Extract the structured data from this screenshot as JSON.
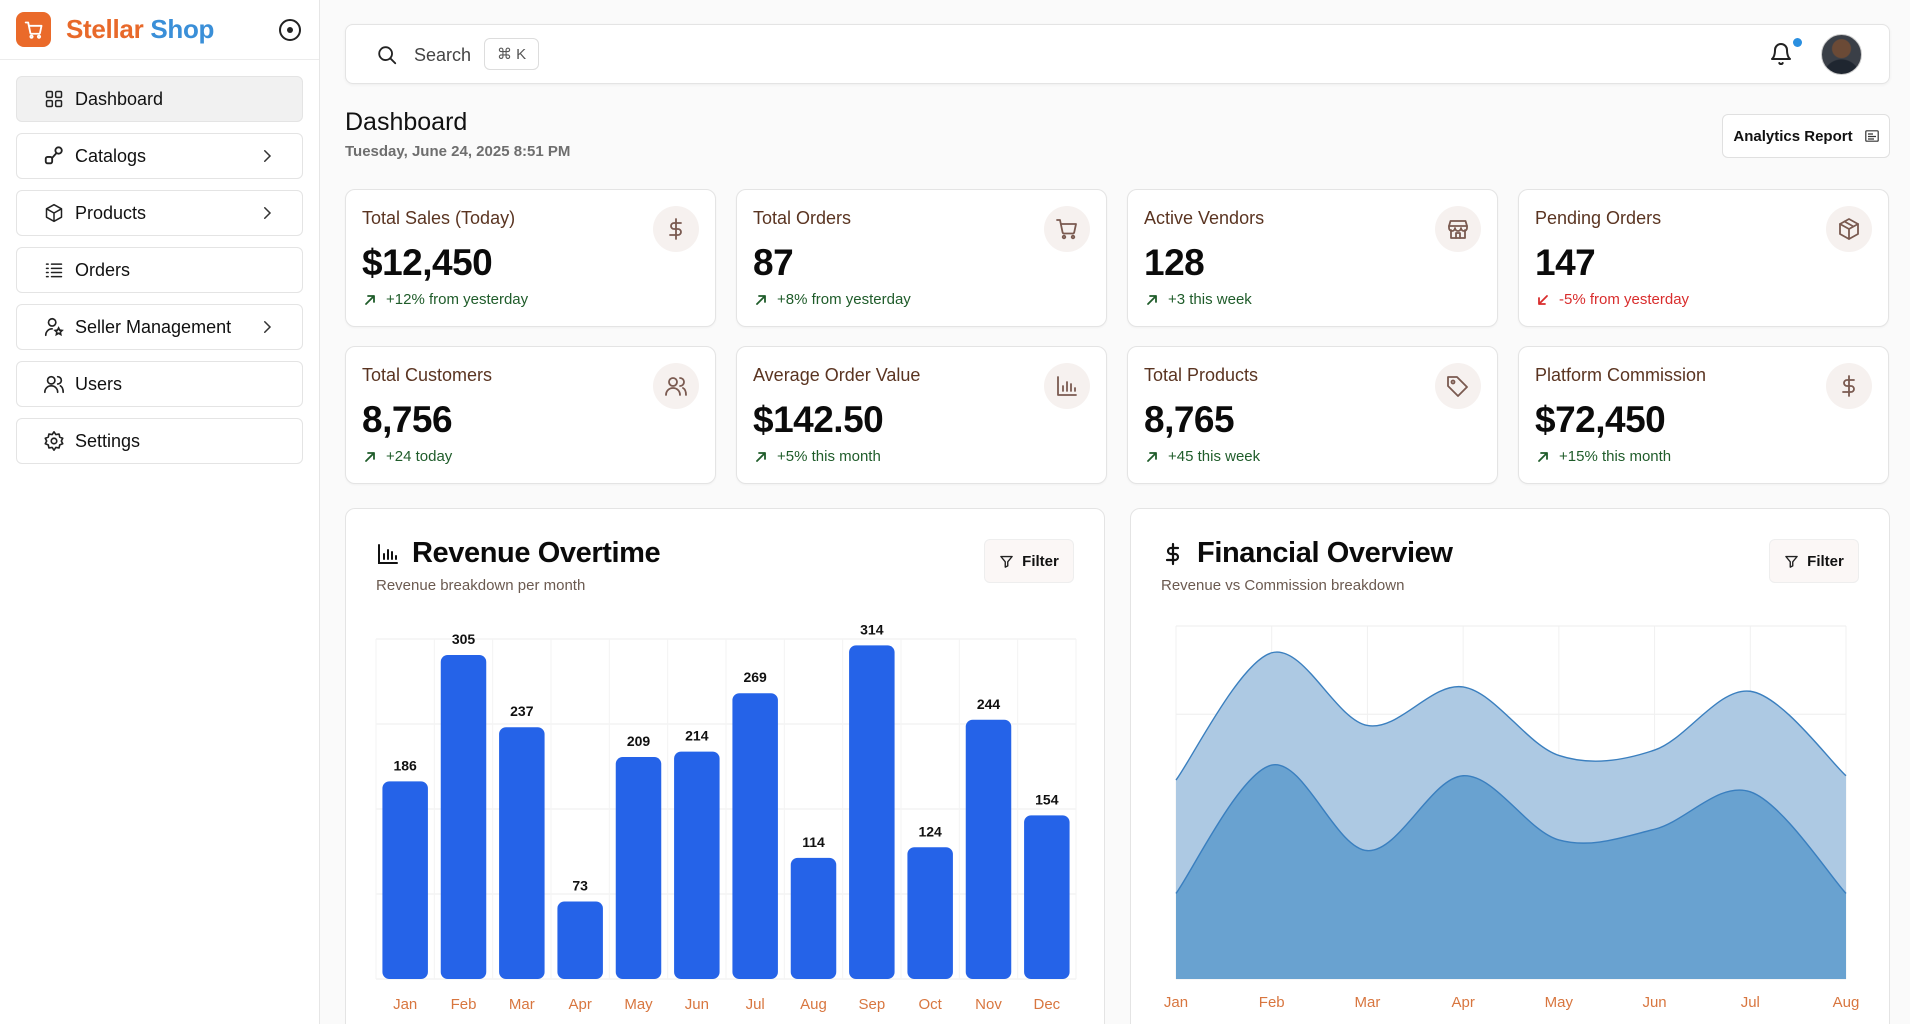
{
  "brand": {
    "word1": "Stellar",
    "word2": "Shop"
  },
  "sidebar": {
    "items": [
      {
        "label": "Dashboard",
        "icon": "grid-icon",
        "active": true,
        "has_submenu": false
      },
      {
        "label": "Catalogs",
        "icon": "catalog-icon",
        "active": false,
        "has_submenu": true
      },
      {
        "label": "Products",
        "icon": "box-icon",
        "active": false,
        "has_submenu": true
      },
      {
        "label": "Orders",
        "icon": "list-icon",
        "active": false,
        "has_submenu": false
      },
      {
        "label": "Seller Management",
        "icon": "seller-icon",
        "active": false,
        "has_submenu": true
      },
      {
        "label": "Users",
        "icon": "users-icon",
        "active": false,
        "has_submenu": false
      },
      {
        "label": "Settings",
        "icon": "gear-icon",
        "active": false,
        "has_submenu": false
      }
    ]
  },
  "topbar": {
    "search_label": "Search",
    "shortcut": "⌘ K",
    "notification_dot": true
  },
  "page": {
    "title": "Dashboard",
    "date": "Tuesday, June 24, 2025 8:51 PM",
    "report_button": "Analytics Report"
  },
  "stats": [
    {
      "title": "Total Sales (Today)",
      "value": "$12,450",
      "trend": "+12% from yesterday",
      "direction": "up",
      "icon": "dollar-icon"
    },
    {
      "title": "Total Orders",
      "value": "87",
      "trend": "+8% from yesterday",
      "direction": "up",
      "icon": "cart-icon"
    },
    {
      "title": "Active Vendors",
      "value": "128",
      "trend": "+3 this week",
      "direction": "up",
      "icon": "store-icon"
    },
    {
      "title": "Pending Orders",
      "value": "147",
      "trend": "-5% from yesterday",
      "direction": "down",
      "icon": "package-icon"
    },
    {
      "title": "Total Customers",
      "value": "8,756",
      "trend": "+24 today",
      "direction": "up",
      "icon": "users-icon"
    },
    {
      "title": "Average Order Value",
      "value": "$142.50",
      "trend": "+5% this month",
      "direction": "up",
      "icon": "bar-chart-icon"
    },
    {
      "title": "Total Products",
      "value": "8,765",
      "trend": "+45 this week",
      "direction": "up",
      "icon": "tag-icon"
    },
    {
      "title": "Platform Commission",
      "value": "$72,450",
      "trend": "+15% this month",
      "direction": "up",
      "icon": "dollar-icon"
    }
  ],
  "colors": {
    "bar": "#2563e8",
    "area_outer": "#a9c6e2",
    "area_inner": "#5d9bcc",
    "line": "#3a7fbf",
    "axis_label": "#d8763f",
    "trend_up": "#1f5c2a",
    "trend_down": "#d92d2d"
  },
  "revenue_panel": {
    "title": "Revenue Overtime",
    "subtitle": "Revenue breakdown per month",
    "filter_label": "Filter"
  },
  "financial_panel": {
    "title": "Financial Overview",
    "subtitle": "Revenue vs Commission breakdown",
    "filter_label": "Filter"
  },
  "chart_data": [
    {
      "type": "bar",
      "title": "Revenue Overtime",
      "categories": [
        "Jan",
        "Feb",
        "Mar",
        "Apr",
        "May",
        "Jun",
        "Jul",
        "Aug",
        "Sep",
        "Oct",
        "Nov",
        "Dec"
      ],
      "values": [
        186,
        305,
        237,
        73,
        209,
        214,
        269,
        114,
        314,
        124,
        244,
        154
      ],
      "ylim": [
        0,
        320
      ],
      "grid": true,
      "data_labels": true
    },
    {
      "type": "area",
      "title": "Financial Overview",
      "categories": [
        "Jan",
        "Feb",
        "Mar",
        "Apr",
        "May",
        "Jun",
        "Jul",
        "Aug"
      ],
      "series": [
        {
          "values": [
            186,
            305,
            237,
            273,
            209,
            214,
            269,
            190
          ]
        },
        {
          "values": [
            80,
            200,
            120,
            190,
            130,
            140,
            175,
            80
          ]
        }
      ],
      "stacked": false,
      "ylim": [
        0,
        330
      ],
      "grid": true
    }
  ]
}
